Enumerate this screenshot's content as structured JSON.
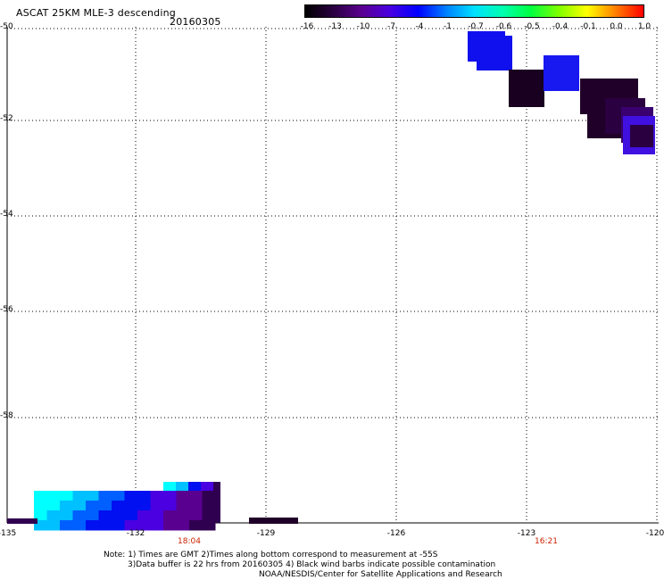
{
  "title": "ASCAT 25KM MLE-3 descending",
  "date": "20160305",
  "colorbar": {
    "labels": [
      "-16",
      "-13",
      "-10",
      "-7",
      "-4",
      "-1",
      "-0.7",
      "-0.6",
      "-0.5",
      "-0.4",
      "-0.1",
      "0.0",
      "1.0"
    ],
    "colors": [
      "#000000",
      "#2a0040",
      "#5a0090",
      "#4a00e0",
      "#0000ff",
      "#0080ff",
      "#00e0ff",
      "#00ffb0",
      "#00ff40",
      "#80ff00",
      "#ffff00",
      "#ff8000",
      "#ff0000"
    ]
  },
  "y_axis": {
    "labels": [
      "-50",
      "-52",
      "-54",
      "-56",
      "-58"
    ]
  },
  "x_axis": {
    "labels": [
      "-135",
      "-132",
      "-129",
      "-126",
      "-123",
      "-120"
    ]
  },
  "time_labels": [
    "18:04",
    "16:21"
  ],
  "notes": [
    "Note: 1) Times are GMT 2)Times along bottom correspond to measurement at -55S",
    "3)Data buffer is 22 hrs from 20160305 4) Black wind barbs indicate possible contamination",
    "NOAA/NESDIS/Center for Satellite Applications and Research"
  ],
  "swaths": [
    {
      "name": "northeast-swath",
      "colors": [
        "#1010ee",
        "#1a0020",
        "#1818f0",
        "#200028",
        "#2a0040",
        "#3a0070",
        "#4010e0"
      ]
    },
    {
      "name": "southwest-swath",
      "colors": [
        "#00ffff",
        "#00c0ff",
        "#0060ff",
        "#0010f0",
        "#4a00e0",
        "#5a0090",
        "#300050"
      ]
    }
  ]
}
